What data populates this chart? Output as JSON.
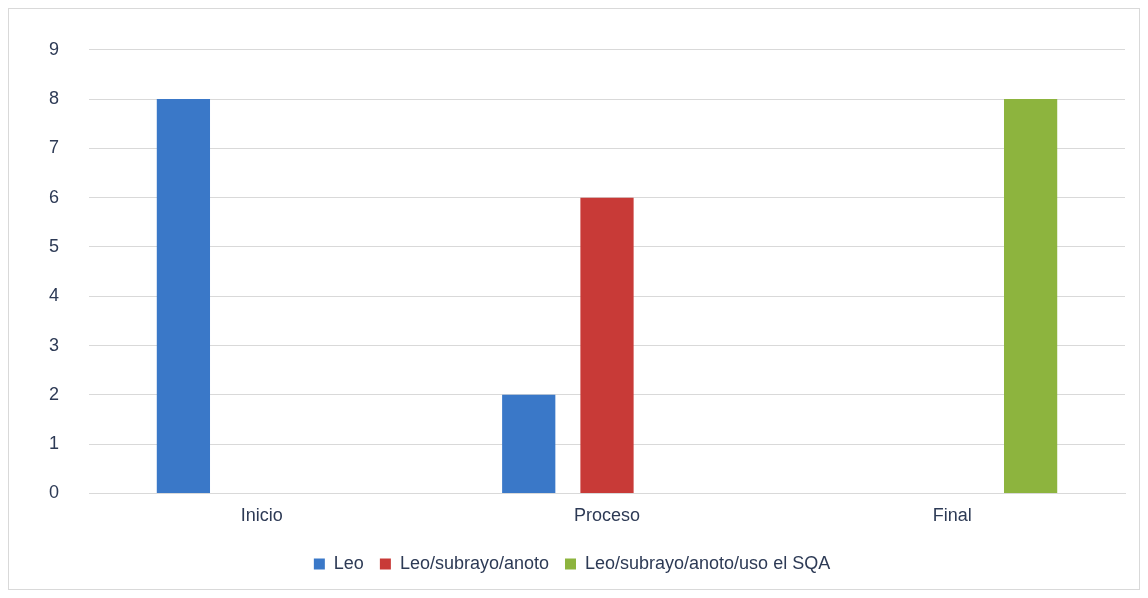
{
  "chart_data": {
    "type": "bar",
    "categories": [
      "Inicio",
      "Proceso",
      "Final"
    ],
    "series": [
      {
        "name": "Leo",
        "color": "#3a78c8",
        "values": [
          8,
          2,
          null
        ]
      },
      {
        "name": "Leo/subrayo/anoto",
        "color": "#c83a37",
        "values": [
          null,
          6,
          null
        ]
      },
      {
        "name": "Leo/subrayo/anoto/uso el SQA",
        "color": "#8db43e",
        "values": [
          null,
          null,
          8
        ]
      }
    ],
    "ylim": [
      0,
      9
    ],
    "yticks": [
      0,
      1,
      2,
      3,
      4,
      5,
      6,
      7,
      8,
      9
    ],
    "grid": "y",
    "legend": "bottom"
  }
}
